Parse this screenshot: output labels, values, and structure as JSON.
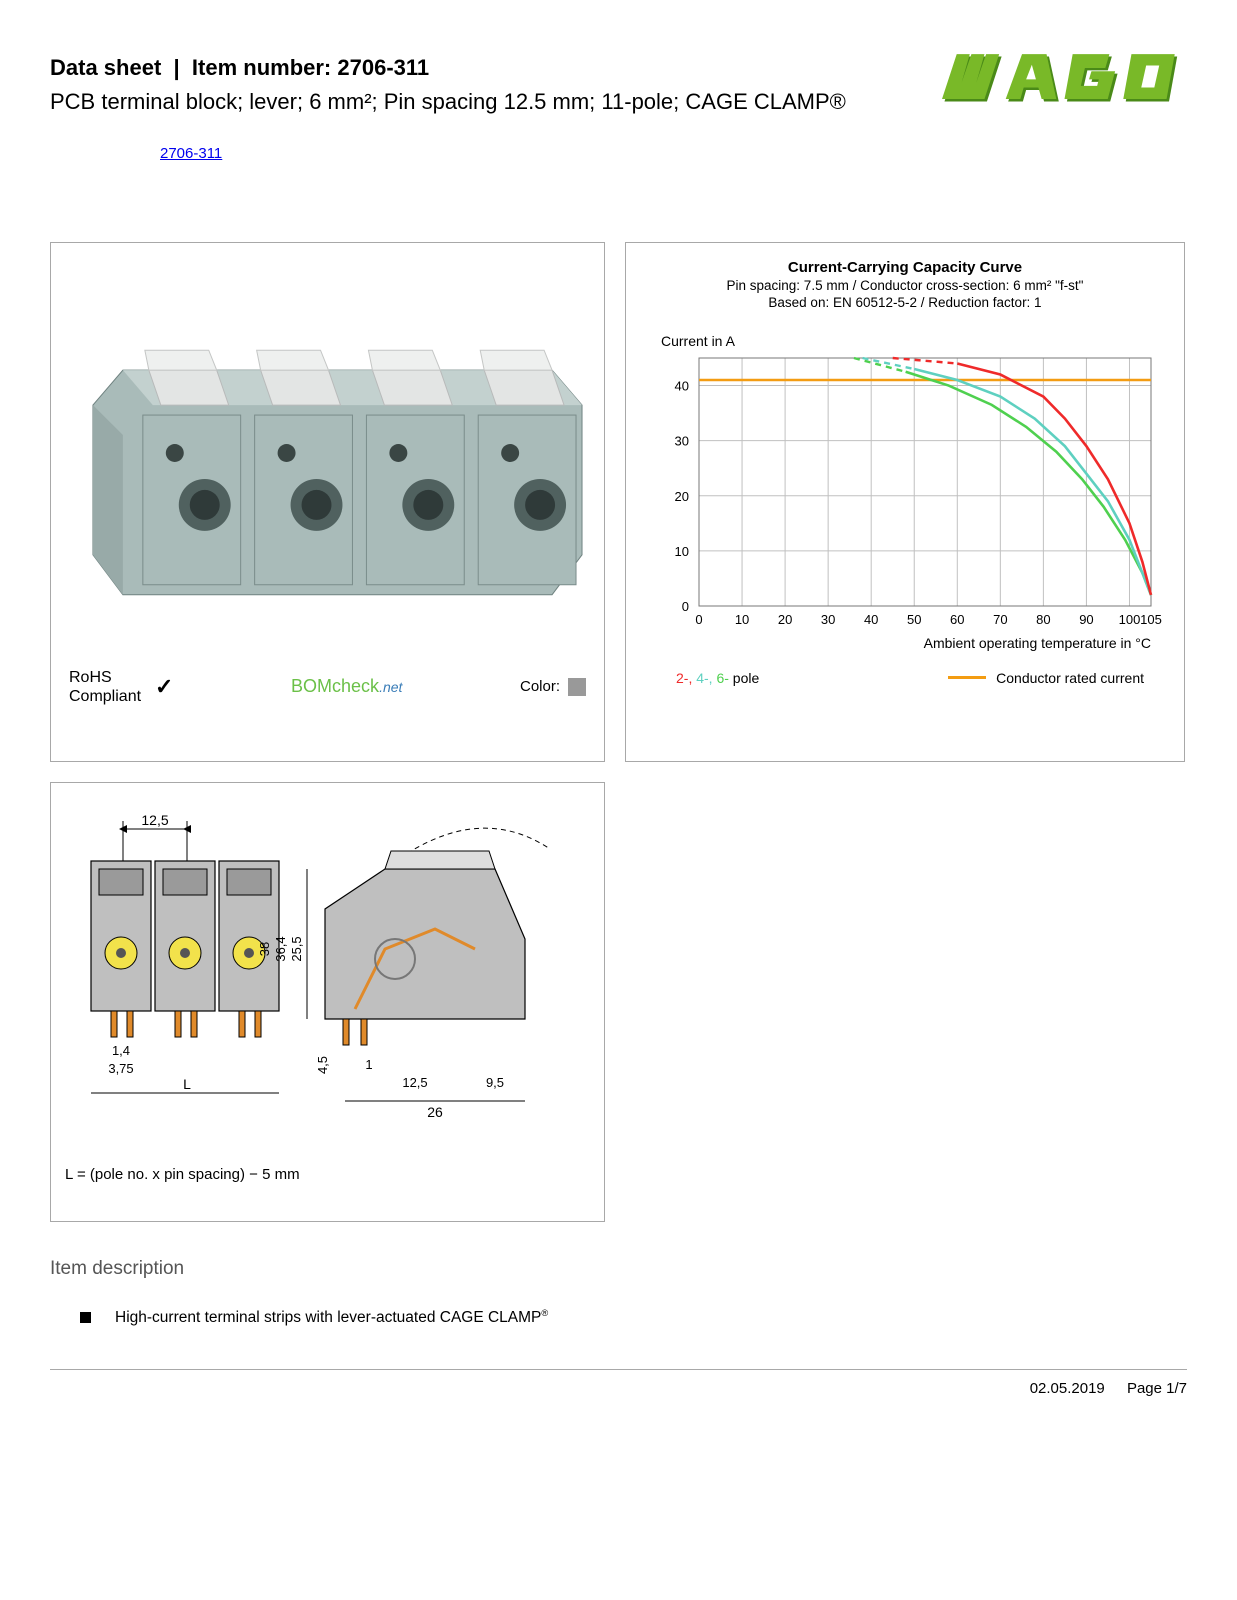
{
  "header": {
    "datasheet_label": "Data sheet",
    "item_label": "Item number:",
    "item_number": "2706-311",
    "subtitle": "PCB terminal block; lever; 6 mm²; Pin spacing 12.5 mm; 11-pole; CAGE CLAMP®",
    "link_text": "2706-311"
  },
  "logo": {
    "brand": "WAGO",
    "fill": "#79b928",
    "shadow": "#4a8a18"
  },
  "product_panel": {
    "housing_color": "#a9bbb9",
    "lever_color": "#e3e5e4",
    "rohs_line1": "RoHS",
    "rohs_line2": "Compliant",
    "bomcheck": "BOMcheck",
    "bomcheck_suffix": ".net",
    "color_label": "Color:",
    "swatch_color": "#999999"
  },
  "chart": {
    "title": "Current-Carrying Capacity Curve",
    "sub1": "Pin spacing: 7.5 mm / Conductor cross-section: 6 mm² \"f-st\"",
    "sub2": "Based on: EN 60512-5-2 / Reduction factor: 1",
    "y_label": "Current in A",
    "x_label": "Ambient operating temperature in °C",
    "xlim": [
      0,
      105
    ],
    "ylim": [
      0,
      45
    ],
    "xticks": [
      0,
      10,
      20,
      30,
      40,
      50,
      60,
      70,
      80,
      90,
      100,
      105
    ],
    "yticks": [
      0,
      10,
      20,
      30,
      40
    ],
    "grid_color": "#c0c0c0",
    "rated_line": {
      "y": 41,
      "color": "#f39c12"
    },
    "series": {
      "p2": {
        "color": "#ef2a2a",
        "solid_from_x": 60,
        "dash_to": 45,
        "pts": [
          [
            45,
            45
          ],
          [
            60,
            44
          ],
          [
            70,
            42
          ],
          [
            80,
            38
          ],
          [
            85,
            34
          ],
          [
            90,
            29
          ],
          [
            95,
            23
          ],
          [
            100,
            15
          ],
          [
            103,
            8
          ],
          [
            105,
            2
          ]
        ]
      },
      "p4": {
        "color": "#5ed0c0",
        "solid_from_x": 50,
        "dash_to": 38,
        "pts": [
          [
            38,
            45
          ],
          [
            50,
            43
          ],
          [
            60,
            41
          ],
          [
            70,
            38
          ],
          [
            78,
            34
          ],
          [
            85,
            29
          ],
          [
            90,
            24
          ],
          [
            95,
            19
          ],
          [
            100,
            12
          ],
          [
            103,
            6
          ],
          [
            105,
            2
          ]
        ]
      },
      "p6": {
        "color": "#4fd04f",
        "solid_from_x": 48,
        "dash_to": 36,
        "pts": [
          [
            36,
            45
          ],
          [
            48,
            42.5
          ],
          [
            58,
            40
          ],
          [
            68,
            36.5
          ],
          [
            76,
            32.5
          ],
          [
            83,
            28
          ],
          [
            89,
            23
          ],
          [
            94,
            18
          ],
          [
            99,
            12
          ],
          [
            103,
            6
          ],
          [
            105,
            2
          ]
        ]
      }
    },
    "legend_poles_prefix": "2-, 4-, 6-",
    "legend_poles_suffix": " pole",
    "legend_rated": "Conductor rated current"
  },
  "drawing": {
    "labels": {
      "pitch": "12,5",
      "L": "L",
      "p14": "1,4",
      "p375": "3,75",
      "h38": "38",
      "h364": "36,4",
      "h255": "25,5",
      "h45": "4,5",
      "w1": "1",
      "w125": "12,5",
      "w95": "9,5",
      "w26": "26"
    },
    "caption": "L = (pole no. x pin spacing) − 5 mm",
    "body_fill": "#bfbfbf",
    "pin_fill": "#e08a2a",
    "hole_fill": "#f2e24b"
  },
  "desc": {
    "heading": "Item description",
    "bullet1_a": "High-current terminal strips with lever-actuated CAGE CLAMP",
    "bullet1_sup": "®"
  },
  "footer": {
    "date": "02.05.2019",
    "page": "Page 1/7"
  }
}
